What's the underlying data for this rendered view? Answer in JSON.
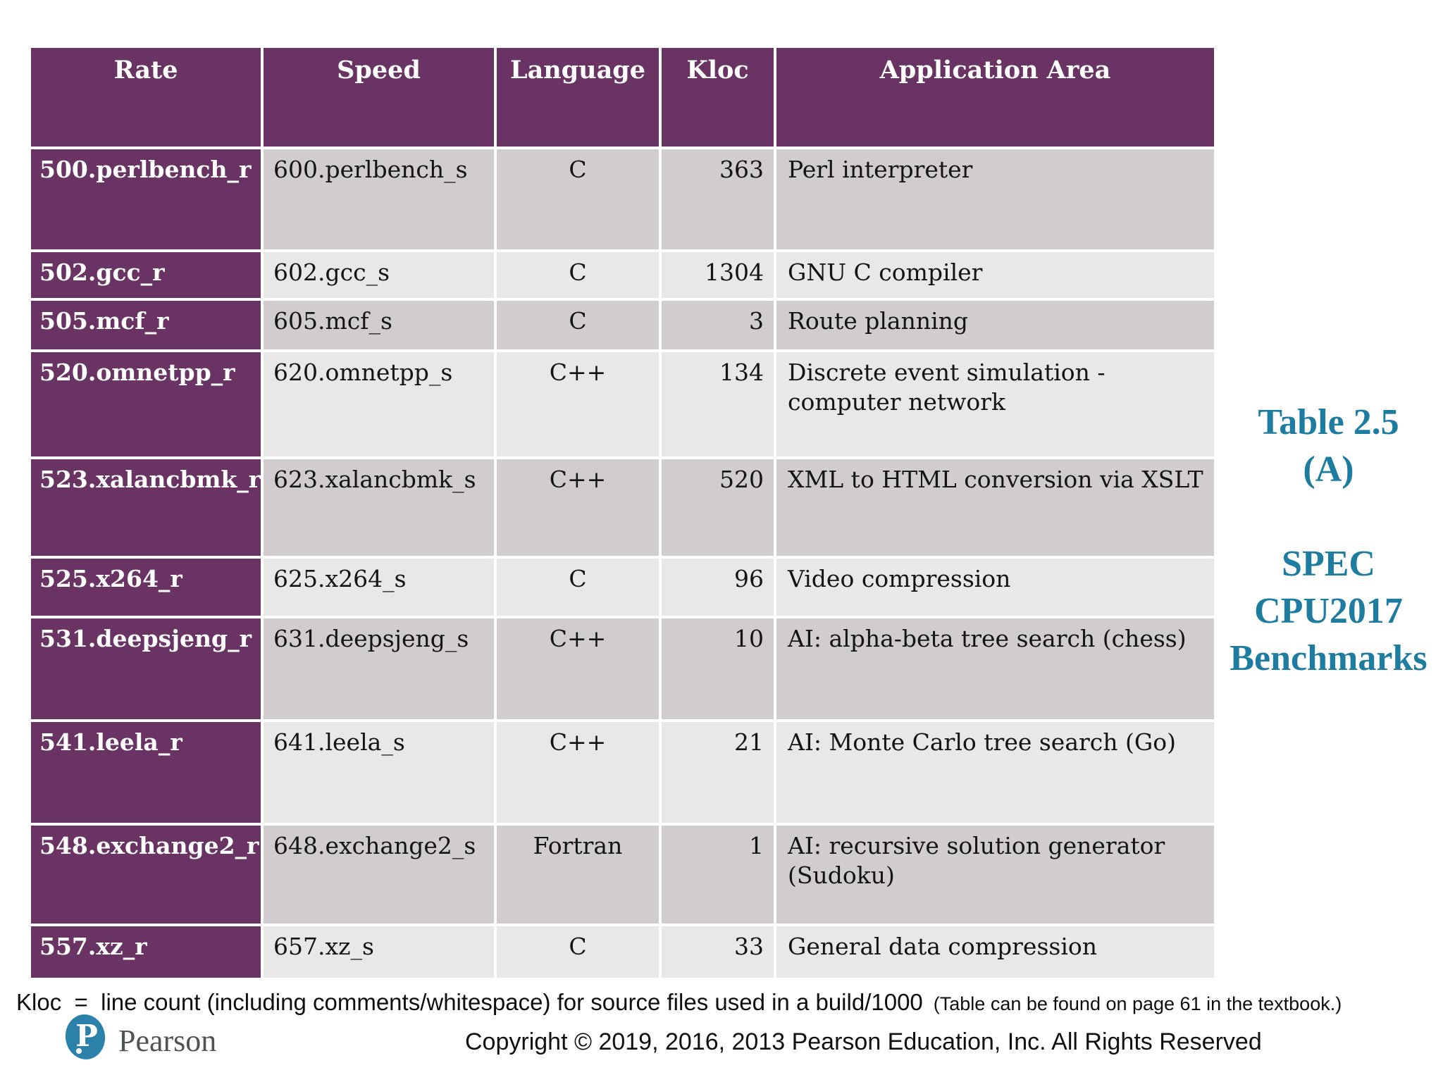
{
  "table": {
    "headers": [
      "Rate",
      "Speed",
      "Language",
      "Kloc",
      "Application Area"
    ],
    "rows": [
      {
        "rate": "500.perlbench_r",
        "speed": "600.perlbench_s",
        "language": "C",
        "kloc": "363",
        "area": "Perl interpreter"
      },
      {
        "rate": "502.gcc_r",
        "speed": "602.gcc_s",
        "language": "C",
        "kloc": "1304",
        "area": "GNU C compiler"
      },
      {
        "rate": "505.mcf_r",
        "speed": "605.mcf_s",
        "language": "C",
        "kloc": "3",
        "area": "Route planning"
      },
      {
        "rate": "520.omnetpp_r",
        "speed": "620.omnetpp_s",
        "language": "C++",
        "kloc": "134",
        "area": "Discrete event simulation - computer network"
      },
      {
        "rate": "523.xalancbmk_r",
        "speed": "623.xalancbmk_s",
        "language": "C++",
        "kloc": "520",
        "area": "XML to HTML conversion via XSLT"
      },
      {
        "rate": "525.x264_r",
        "speed": "625.x264_s",
        "language": "C",
        "kloc": "96",
        "area": "Video compression"
      },
      {
        "rate": "531.deepsjeng_r",
        "speed": "631.deepsjeng_s",
        "language": "C++",
        "kloc": "10",
        "area": "AI: alpha-beta tree search (chess)"
      },
      {
        "rate": "541.leela_r",
        "speed": "641.leela_s",
        "language": "C++",
        "kloc": "21",
        "area": "AI: Monte Carlo tree search (Go)"
      },
      {
        "rate": "548.exchange2_r",
        "speed": "648.exchange2_s",
        "language": "Fortran",
        "kloc": "1",
        "area": "AI: recursive solution generator (Sudoku)"
      },
      {
        "rate": "557.xz_r",
        "speed": "657.xz_s",
        "language": "C",
        "kloc": "33",
        "area": "General data compression"
      }
    ]
  },
  "caption": {
    "lines": [
      "Table 2.5",
      "(A)",
      "",
      "SPEC",
      "CPU2017",
      "Benchmarks"
    ]
  },
  "footnote": {
    "main": "Kloc  =  line count (including comments/whitespace) for source files used in a build/1000",
    "note": "  (Table can be found on page 61 in the textbook.)"
  },
  "footer": {
    "copyright": "Copyright © 2019, 2016, 2013 Pearson Education, Inc. All Rights Reserved"
  },
  "logo": {
    "brand": "Pearson",
    "monogram": "P"
  },
  "colors": {
    "header_purple": "#693464",
    "row_dark": "#d1ccd0",
    "row_light": "#eae7e9",
    "caption_teal": "#1d7ca0",
    "logo_teal": "#2b81aa",
    "wordmark_gray": "#4e5356"
  }
}
